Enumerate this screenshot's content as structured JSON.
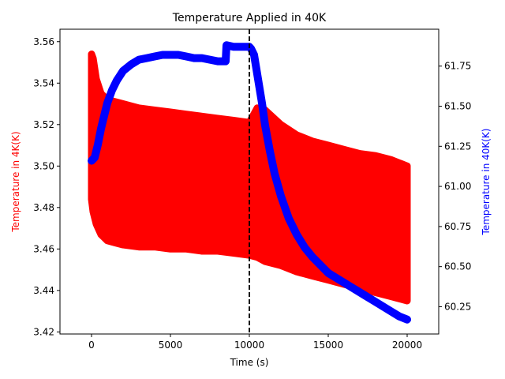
{
  "chart_data": {
    "type": "scatter",
    "title": "Temperature Applied in 40K",
    "xlabel": "Time (s)",
    "ylabel_left": "Temperature in 4K(K)",
    "ylabel_right": "Temperature in 40K(K)",
    "xlim": [
      -2000,
      22000
    ],
    "ylim_left": [
      3.419,
      3.566
    ],
    "ylim_right": [
      60.08,
      61.98
    ],
    "x_ticks": [
      0,
      5000,
      10000,
      15000,
      20000
    ],
    "x_tick_labels": [
      "0",
      "5000",
      "10000",
      "15000",
      "20000"
    ],
    "y_left_ticks": [
      3.42,
      3.44,
      3.46,
      3.48,
      3.5,
      3.52,
      3.54,
      3.56
    ],
    "y_left_tick_labels": [
      "3.42",
      "3.44",
      "3.46",
      "3.48",
      "3.50",
      "3.52",
      "3.54",
      "3.56"
    ],
    "y_right_ticks": [
      60.25,
      60.5,
      60.75,
      61.0,
      61.25,
      61.5,
      61.75
    ],
    "y_right_tick_labels": [
      "60.25",
      "60.50",
      "60.75",
      "61.00",
      "61.25",
      "61.50",
      "61.75"
    ],
    "vline": {
      "x": 10000,
      "style": "dashed",
      "color": "#000000"
    },
    "grid": false,
    "legend": "none",
    "series": [
      {
        "axis": "left",
        "color": "#ff0000",
        "band_x": [
          0,
          100,
          300,
          600,
          1000,
          1500,
          2000,
          3000,
          4000,
          5000,
          6000,
          7000,
          8000,
          9000,
          10000,
          10500,
          11000,
          12000,
          13000,
          14000,
          15000,
          16000,
          17000,
          18000,
          19000,
          20000
        ],
        "band_upper": [
          3.554,
          3.552,
          3.542,
          3.535,
          3.532,
          3.531,
          3.53,
          3.528,
          3.527,
          3.526,
          3.525,
          3.524,
          3.523,
          3.522,
          3.521,
          3.528,
          3.527,
          3.52,
          3.515,
          3.512,
          3.51,
          3.508,
          3.506,
          3.505,
          3.503,
          3.5
        ],
        "band_lower": [
          3.484,
          3.478,
          3.472,
          3.467,
          3.464,
          3.463,
          3.462,
          3.461,
          3.461,
          3.46,
          3.46,
          3.459,
          3.459,
          3.458,
          3.457,
          3.456,
          3.454,
          3.452,
          3.449,
          3.447,
          3.445,
          3.443,
          3.441,
          3.439,
          3.437,
          3.435
        ]
      },
      {
        "axis": "right",
        "color": "#0000ff",
        "x": [
          0,
          200,
          400,
          600,
          800,
          1000,
          1300,
          1600,
          2000,
          2500,
          3000,
          3500,
          4000,
          4500,
          5000,
          5500,
          6000,
          6500,
          7000,
          7500,
          8000,
          8500,
          8550,
          9000,
          9500,
          10000,
          10100,
          10300,
          10500,
          10800,
          11000,
          11300,
          11600,
          12000,
          12500,
          13000,
          13500,
          14000,
          14500,
          15000,
          15500,
          16000,
          16500,
          17000,
          17500,
          18000,
          18500,
          19000,
          19500,
          20000
        ],
        "y": [
          61.16,
          61.18,
          61.26,
          61.36,
          61.44,
          61.52,
          61.6,
          61.66,
          61.72,
          61.76,
          61.79,
          61.8,
          61.81,
          61.82,
          61.82,
          61.82,
          61.81,
          61.8,
          61.8,
          61.79,
          61.78,
          61.78,
          61.88,
          61.87,
          61.87,
          61.87,
          61.86,
          61.82,
          61.7,
          61.52,
          61.38,
          61.22,
          61.08,
          60.94,
          60.8,
          60.7,
          60.62,
          60.56,
          60.51,
          60.46,
          60.43,
          60.4,
          60.37,
          60.34,
          60.31,
          60.28,
          60.25,
          60.22,
          60.19,
          60.17
        ]
      }
    ]
  }
}
